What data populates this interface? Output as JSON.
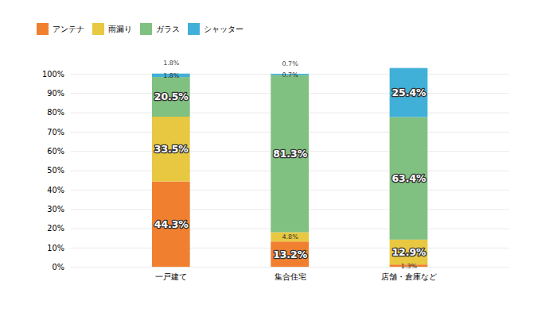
{
  "chart_data": {
    "type": "bar",
    "stacked": true,
    "categories": [
      "一戸建て",
      "集合住宅",
      "店舗・倉庫など"
    ],
    "series": [
      {
        "name": "アンテナ",
        "color": "#F08030",
        "values": [
          44.3,
          13.2,
          1.3
        ],
        "value_labels": [
          "44.3%",
          "13.2%",
          "1.3%"
        ]
      },
      {
        "name": "雨漏り",
        "color": "#E8C840",
        "values": [
          33.5,
          4.8,
          12.9
        ],
        "value_labels": [
          "33.5%",
          "4.8%",
          "12.9%"
        ]
      },
      {
        "name": "ガラス",
        "color": "#80C080",
        "values": [
          20.5,
          81.3,
          63.4
        ],
        "value_labels": [
          "20.5%",
          "81.3%",
          "63.4%"
        ]
      },
      {
        "name": "シャッター",
        "color": "#40B0D8",
        "values": [
          1.8,
          0.7,
          25.4
        ],
        "value_labels": [
          "1.8%",
          "0.7%",
          "25.4%"
        ]
      }
    ],
    "annotations": [
      {
        "category": "一戸建て",
        "text": "1.8%"
      },
      {
        "category": "集合住宅",
        "text": "0.7%"
      }
    ],
    "ylim": [
      0,
      110
    ],
    "yticks": [
      {
        "value": 0,
        "label": "0%"
      },
      {
        "value": 10,
        "label": "10%"
      },
      {
        "value": 20,
        "label": "20%"
      },
      {
        "value": 30,
        "label": "30%"
      },
      {
        "value": 40,
        "label": "40%"
      },
      {
        "value": 50,
        "label": "50%"
      },
      {
        "value": 60,
        "label": "60%"
      },
      {
        "value": 70,
        "label": "70%"
      },
      {
        "value": 80,
        "label": "80%"
      },
      {
        "value": 90,
        "label": "90%"
      },
      {
        "value": 100,
        "label": "100%"
      }
    ],
    "grid": true,
    "legend": "top",
    "data_labels": true
  }
}
